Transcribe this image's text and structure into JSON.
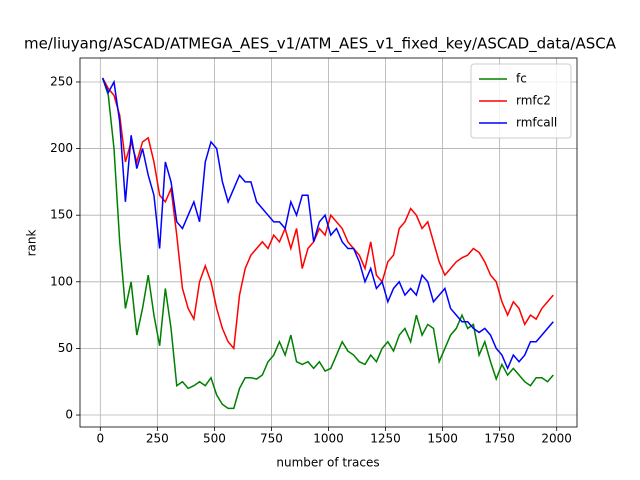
{
  "chart_data": {
    "type": "line",
    "title": "me/liuyang/ASCAD/ATMEGA_AES_v1/ATM_AES_v1_fixed_key/ASCAD_data/ASCA",
    "x_label": "number of traces",
    "y_label": "rank",
    "x": [
      10,
      35,
      60,
      85,
      110,
      135,
      160,
      185,
      210,
      235,
      260,
      285,
      310,
      335,
      360,
      385,
      410,
      435,
      460,
      485,
      510,
      535,
      560,
      585,
      610,
      635,
      660,
      685,
      710,
      735,
      760,
      785,
      810,
      835,
      860,
      885,
      910,
      935,
      960,
      985,
      1010,
      1035,
      1060,
      1085,
      1110,
      1135,
      1160,
      1185,
      1210,
      1235,
      1260,
      1285,
      1310,
      1335,
      1360,
      1385,
      1410,
      1435,
      1460,
      1485,
      1510,
      1535,
      1560,
      1585,
      1610,
      1635,
      1660,
      1685,
      1710,
      1735,
      1760,
      1785,
      1810,
      1835,
      1860,
      1885,
      1910,
      1935,
      1960,
      1985
    ],
    "series": [
      {
        "name": "fc",
        "color": "#008000",
        "values": [
          253,
          240,
          200,
          130,
          80,
          100,
          60,
          80,
          105,
          75,
          52,
          95,
          65,
          22,
          25,
          20,
          22,
          25,
          22,
          28,
          15,
          8,
          5,
          5,
          20,
          28,
          28,
          27,
          30,
          40,
          45,
          55,
          45,
          60,
          40,
          38,
          40,
          35,
          40,
          33,
          35,
          45,
          55,
          48,
          45,
          40,
          38,
          45,
          40,
          50,
          55,
          48,
          60,
          65,
          55,
          75,
          60,
          68,
          65,
          40,
          50,
          60,
          65,
          75,
          65,
          68,
          45,
          55,
          40,
          27,
          38,
          30,
          35,
          30,
          25,
          22,
          28,
          28,
          25,
          30
        ]
      },
      {
        "name": "rmfc2",
        "color": "#ff0000",
        "values": [
          253,
          245,
          240,
          225,
          190,
          205,
          190,
          205,
          208,
          190,
          165,
          160,
          170,
          135,
          95,
          80,
          72,
          100,
          112,
          100,
          80,
          65,
          55,
          50,
          90,
          110,
          120,
          125,
          130,
          125,
          135,
          130,
          140,
          125,
          140,
          110,
          125,
          130,
          140,
          135,
          150,
          145,
          140,
          130,
          125,
          120,
          110,
          130,
          105,
          100,
          115,
          120,
          140,
          145,
          155,
          150,
          140,
          145,
          130,
          115,
          105,
          110,
          115,
          118,
          120,
          125,
          122,
          115,
          105,
          100,
          85,
          75,
          85,
          80,
          68,
          75,
          72,
          80,
          85,
          90
        ]
      },
      {
        "name": "rmfcall",
        "color": "#0000ff",
        "values": [
          253,
          242,
          250,
          220,
          160,
          210,
          185,
          200,
          180,
          165,
          125,
          190,
          175,
          145,
          140,
          150,
          160,
          145,
          190,
          205,
          200,
          175,
          160,
          170,
          180,
          175,
          175,
          160,
          155,
          150,
          145,
          145,
          140,
          160,
          150,
          165,
          165,
          130,
          145,
          150,
          135,
          140,
          130,
          125,
          125,
          115,
          100,
          110,
          95,
          100,
          85,
          95,
          100,
          90,
          95,
          90,
          105,
          100,
          85,
          90,
          95,
          80,
          75,
          70,
          70,
          65,
          62,
          65,
          60,
          50,
          45,
          35,
          45,
          40,
          45,
          55,
          55,
          60,
          65,
          70
        ]
      }
    ],
    "xlim": [
      -89,
      2089
    ],
    "ylim": [
      -9,
      268
    ],
    "xticks": [
      0,
      250,
      500,
      750,
      1000,
      1250,
      1500,
      1750,
      2000
    ],
    "yticks": [
      0,
      50,
      100,
      150,
      200,
      250
    ],
    "grid": true,
    "legend": "upper right"
  }
}
